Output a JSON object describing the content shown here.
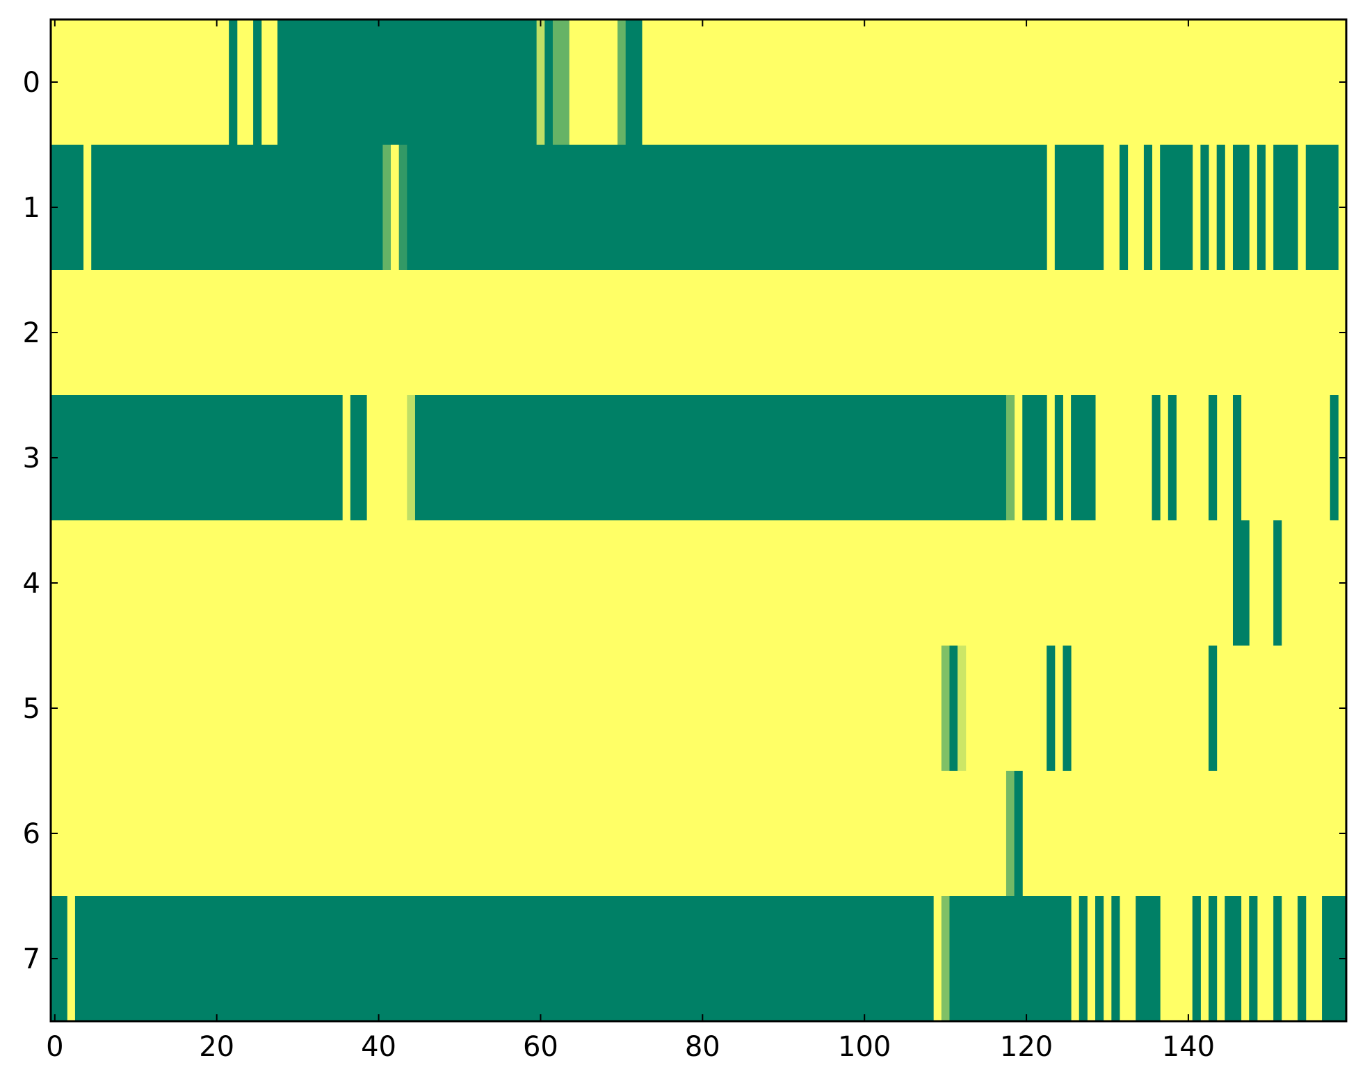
{
  "chart_data": {
    "type": "heatmap",
    "title": "",
    "xlabel": "",
    "ylabel": "",
    "xlim": [
      -0.5,
      159.5
    ],
    "ylim": [
      7.5,
      -0.5
    ],
    "grid": false,
    "colormap": "summer",
    "value_range": [
      0,
      1
    ],
    "color_low": "#008066",
    "color_high": "#ffff66",
    "frame_color": "#000000",
    "x_ticks": [
      0,
      20,
      40,
      60,
      80,
      100,
      120,
      140
    ],
    "x_tick_labels": [
      "0",
      "20",
      "40",
      "60",
      "80",
      "100",
      "120",
      "140"
    ],
    "y_ticks": [
      0,
      1,
      2,
      3,
      4,
      5,
      6,
      7
    ],
    "y_tick_labels": [
      "0",
      "1",
      "2",
      "3",
      "4",
      "5",
      "6",
      "7"
    ],
    "n_columns": 160,
    "default_value": 1,
    "rows": [
      {
        "row": 0,
        "segments": [
          [
            22,
            22,
            0
          ],
          [
            25,
            25,
            0
          ],
          [
            28,
            59,
            0
          ],
          [
            60,
            60,
            0.75
          ],
          [
            61,
            61,
            0
          ],
          [
            62,
            62,
            0.4
          ],
          [
            63,
            63,
            0.4
          ],
          [
            70,
            70,
            0.4
          ],
          [
            71,
            71,
            0
          ],
          [
            72,
            72,
            0
          ]
        ]
      },
      {
        "row": 1,
        "segments": [
          [
            0,
            3,
            0
          ],
          [
            5,
            40,
            0
          ],
          [
            41,
            41,
            0.4
          ],
          [
            42,
            42,
            1
          ],
          [
            43,
            43,
            0.2
          ],
          [
            44,
            122,
            0
          ],
          [
            124,
            129,
            0
          ],
          [
            132,
            132,
            0
          ],
          [
            135,
            135,
            0
          ],
          [
            137,
            140,
            0
          ],
          [
            142,
            142,
            0
          ],
          [
            144,
            144,
            0
          ],
          [
            146,
            147,
            0
          ],
          [
            149,
            149,
            0
          ],
          [
            151,
            153,
            0
          ],
          [
            155,
            158,
            0
          ]
        ]
      },
      {
        "row": 2,
        "segments": []
      },
      {
        "row": 3,
        "segments": [
          [
            0,
            35,
            0
          ],
          [
            37,
            38,
            0
          ],
          [
            44,
            44,
            0.75
          ],
          [
            45,
            117,
            0
          ],
          [
            118,
            118,
            0.45
          ],
          [
            120,
            122,
            0
          ],
          [
            124,
            124,
            0
          ],
          [
            126,
            128,
            0
          ],
          [
            136,
            136,
            0
          ],
          [
            138,
            138,
            0
          ],
          [
            143,
            143,
            0
          ],
          [
            146,
            146,
            0
          ],
          [
            158,
            158,
            0
          ]
        ]
      },
      {
        "row": 4,
        "segments": [
          [
            146,
            147,
            0
          ],
          [
            151,
            151,
            0
          ]
        ]
      },
      {
        "row": 5,
        "segments": [
          [
            110,
            110,
            0.5
          ],
          [
            111,
            111,
            0
          ],
          [
            112,
            112,
            0.8
          ],
          [
            123,
            123,
            0
          ],
          [
            125,
            125,
            0
          ],
          [
            143,
            143,
            0
          ]
        ]
      },
      {
        "row": 6,
        "segments": [
          [
            118,
            118,
            0.45
          ],
          [
            119,
            119,
            0
          ]
        ]
      },
      {
        "row": 7,
        "segments": [
          [
            0,
            1,
            0
          ],
          [
            3,
            108,
            0
          ],
          [
            110,
            110,
            0.5
          ],
          [
            111,
            125,
            0
          ],
          [
            127,
            127,
            0
          ],
          [
            129,
            129,
            0
          ],
          [
            131,
            131,
            0
          ],
          [
            134,
            136,
            0
          ],
          [
            141,
            141,
            0
          ],
          [
            143,
            143,
            0
          ],
          [
            145,
            146,
            0
          ],
          [
            148,
            148,
            0
          ],
          [
            151,
            151,
            0
          ],
          [
            154,
            154,
            0
          ],
          [
            157,
            159,
            0
          ]
        ]
      }
    ]
  }
}
